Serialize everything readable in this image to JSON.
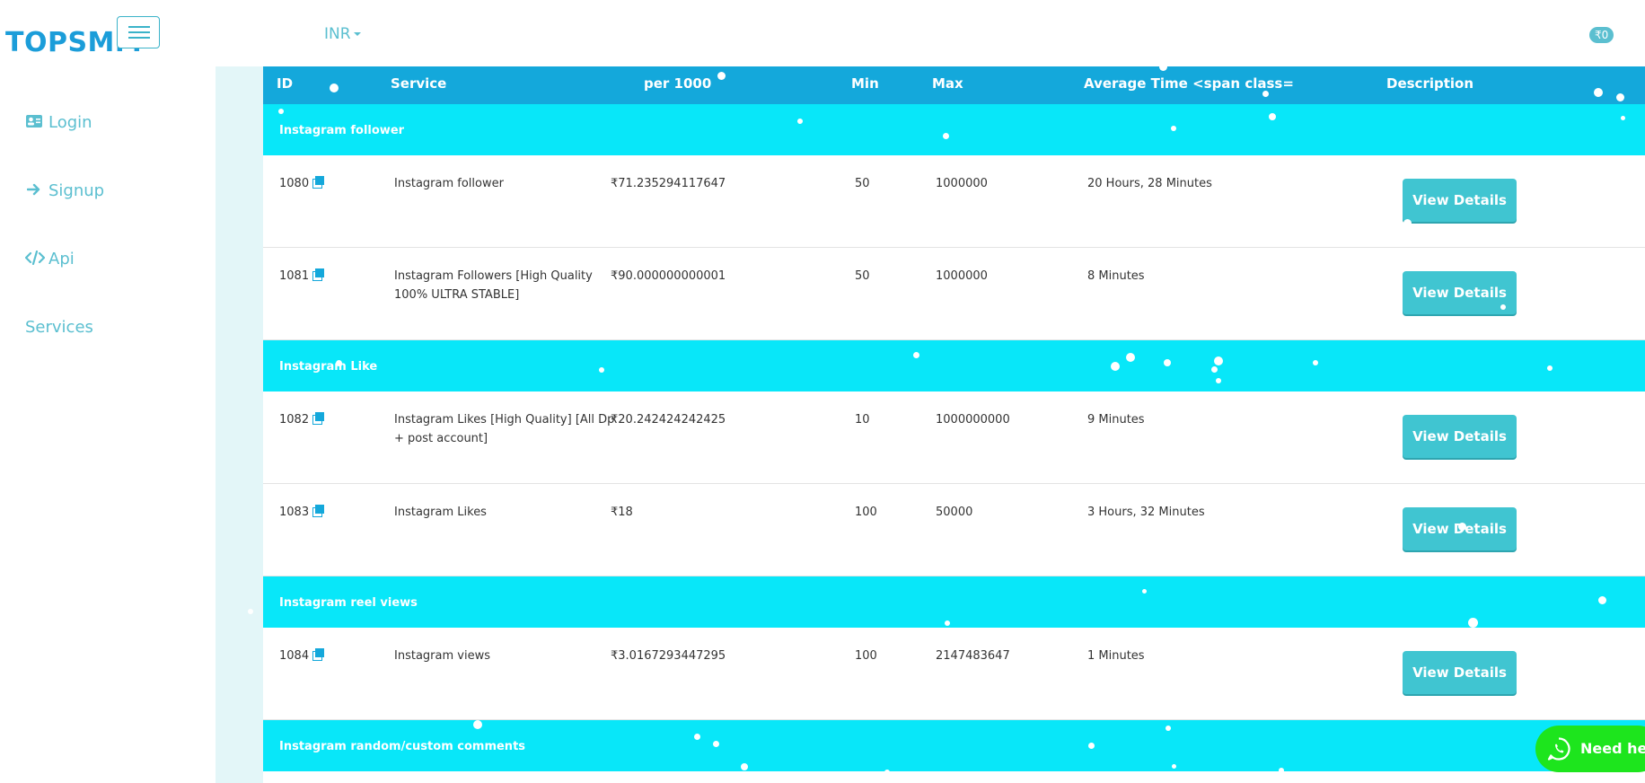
{
  "header": {
    "brand": "TOPSMM",
    "currency": "INR",
    "balance": "₹0"
  },
  "sidebar": {
    "items": [
      {
        "label": "Login",
        "icon": "id-card-icon"
      },
      {
        "label": "Signup",
        "icon": "arrow-right-icon"
      },
      {
        "label": "Api",
        "icon": "code-icon"
      },
      {
        "label": "Services",
        "icon": ""
      }
    ]
  },
  "table": {
    "columns": [
      "ID",
      "Service",
      "per 1000",
      "Min",
      "Max",
      "Average Time <span class=",
      "Description"
    ],
    "button_label": "View Details",
    "groups": [
      {
        "title": "Instagram follower",
        "rows": [
          {
            "id": "1080",
            "service": "Instagram follower",
            "rate": "₹71.235294117647",
            "min": "50",
            "max": "1000000",
            "time": "20 Hours, 28 Minutes"
          },
          {
            "id": "1081",
            "service": "Instagram Followers [High Quality 100% ULTRA STABLE]",
            "rate": "₹90.000000000001",
            "min": "50",
            "max": "1000000",
            "time": "8 Minutes"
          }
        ]
      },
      {
        "title": "Instagram Like",
        "rows": [
          {
            "id": "1082",
            "service": "Instagram Likes [High Quality] [All Dp + post account]",
            "rate": "₹20.242424242425",
            "min": "10",
            "max": "1000000000",
            "time": "9 Minutes"
          },
          {
            "id": "1083",
            "service": "Instagram Likes",
            "rate": "₹18",
            "min": "100",
            "max": "50000",
            "time": "3 Hours, 32 Minutes"
          }
        ]
      },
      {
        "title": "Instagram reel views",
        "rows": [
          {
            "id": "1084",
            "service": "Instagram views",
            "rate": "₹3.0167293447295",
            "min": "100",
            "max": "2147483647",
            "time": "1 Minutes"
          }
        ]
      },
      {
        "title": "Instagram random/custom comments",
        "rows": []
      }
    ]
  },
  "whatsapp": {
    "label": "Need help?"
  },
  "colors": {
    "brand": "#1b9dd9",
    "header_row": "#14a8db",
    "group_row": "#08e7f9",
    "button": "#40c5d1",
    "whatsapp": "#1de51d"
  }
}
